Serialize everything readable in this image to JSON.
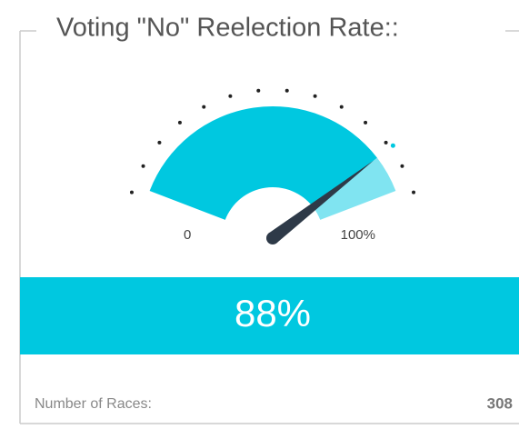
{
  "chart_data": {
    "type": "gauge",
    "title": "Voting \"No\" Reelection Rate::",
    "value": 88,
    "value_label": "88%",
    "color": "#00c8e0",
    "track_color": "#80e4f1",
    "ylim": [
      0,
      100
    ],
    "yticks": [
      0,
      {
        "value": 100,
        "label": "100%"
      }
    ],
    "footer": {
      "label": "Number of Races:",
      "value": 308
    }
  }
}
